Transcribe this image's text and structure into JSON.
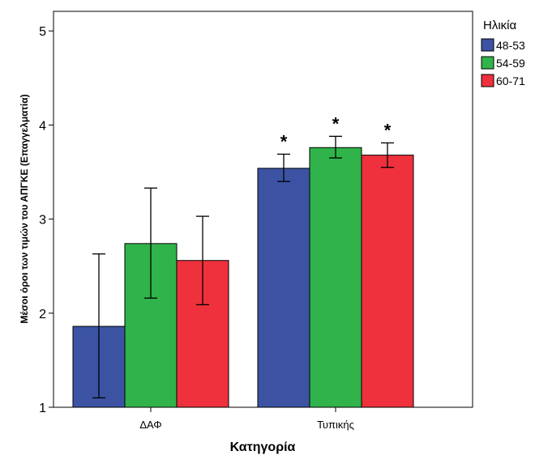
{
  "chart_data": {
    "type": "bar",
    "title": "",
    "xlabel": "Κατηγορία",
    "ylabel": "Μέσοι όροι των τιμών του ΑΠΓΚΕ (Επαγγελματία)",
    "ylim": [
      1,
      5.2
    ],
    "yticks": [
      1,
      2,
      3,
      4,
      5
    ],
    "categories": [
      "ΔΑΦ",
      "Τυπικής"
    ],
    "grid": false,
    "legend": {
      "title": "Ηλικία",
      "placement": "right-top"
    },
    "series": [
      {
        "name": "48-53",
        "color": "#3c53a4",
        "values": [
          1.86,
          3.54
        ],
        "err_low": [
          1.1,
          3.4
        ],
        "err_high": [
          2.63,
          3.69
        ],
        "markers": [
          "",
          "*"
        ]
      },
      {
        "name": "54-59",
        "color": "#2fb34a",
        "values": [
          2.74,
          3.76
        ],
        "err_low": [
          2.16,
          3.65
        ],
        "err_high": [
          3.33,
          3.88
        ],
        "markers": [
          "",
          "*"
        ]
      },
      {
        "name": "60-71",
        "color": "#ee313c",
        "values": [
          2.56,
          3.68
        ],
        "err_low": [
          2.09,
          3.55
        ],
        "err_high": [
          3.03,
          3.81
        ],
        "markers": [
          "",
          "*"
        ]
      }
    ]
  }
}
